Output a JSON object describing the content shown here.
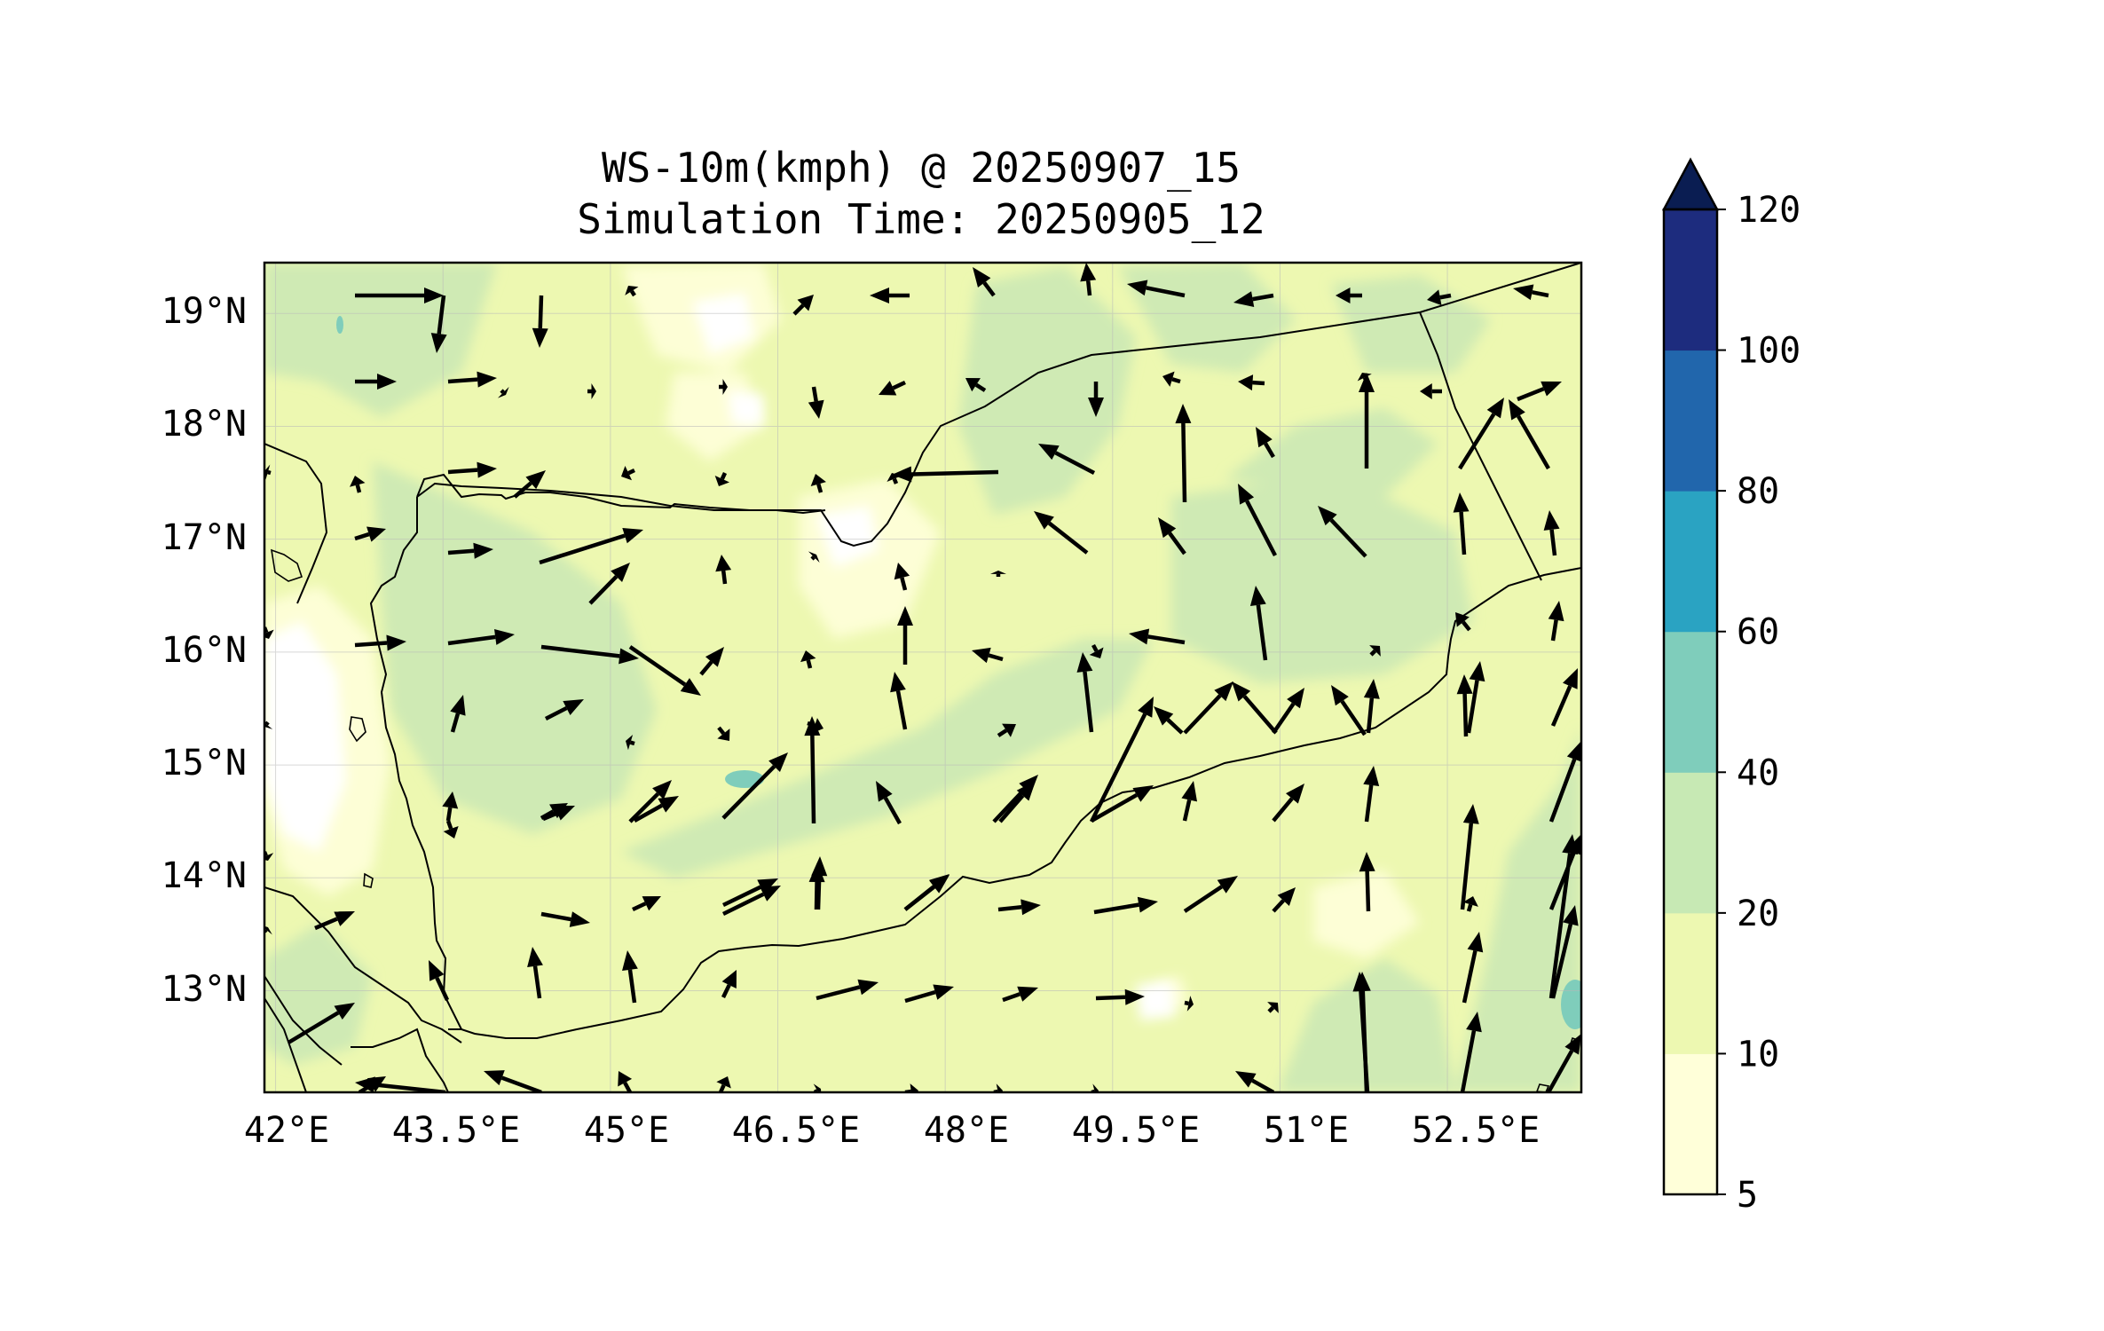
{
  "figure": {
    "title_line1": "WS-10m(kmph) @ 20250907_15",
    "title_line2": "Simulation Time: 20250905_12"
  },
  "map": {
    "lon_range": [
      41.9,
      53.7
    ],
    "lat_range": [
      12.1,
      19.45
    ],
    "lon_ticks": [
      {
        "value": 42.0,
        "label": "42°E"
      },
      {
        "value": 43.5,
        "label": "43.5°E"
      },
      {
        "value": 45.0,
        "label": "45°E"
      },
      {
        "value": 46.5,
        "label": "46.5°E"
      },
      {
        "value": 48.0,
        "label": "48°E"
      },
      {
        "value": 49.5,
        "label": "49.5°E"
      },
      {
        "value": 51.0,
        "label": "51°E"
      },
      {
        "value": 52.5,
        "label": "52.5°E"
      }
    ],
    "lat_ticks": [
      {
        "value": 19,
        "label": "19°N"
      },
      {
        "value": 18,
        "label": "18°N"
      },
      {
        "value": 17,
        "label": "17°N"
      },
      {
        "value": 16,
        "label": "16°N"
      },
      {
        "value": 15,
        "label": "15°N"
      },
      {
        "value": 14,
        "label": "14°N"
      },
      {
        "value": 13,
        "label": "13°N"
      }
    ],
    "gridlines": true,
    "wind_vector_color": "#000000",
    "border_color": "#000000"
  },
  "colorbar": {
    "extend": "max",
    "levels": [
      {
        "value": 5,
        "label": "5"
      },
      {
        "value": 10,
        "label": "10"
      },
      {
        "value": 20,
        "label": "20"
      },
      {
        "value": 40,
        "label": "40"
      },
      {
        "value": 60,
        "label": "60"
      },
      {
        "value": 80,
        "label": "80"
      },
      {
        "value": 100,
        "label": "100"
      },
      {
        "value": 120,
        "label": "120"
      }
    ],
    "colors": [
      "#ffffd9",
      "#edf8b1",
      "#c7e9b4",
      "#7fcdbb",
      "#2aa3c2",
      "#2166ac",
      "#1d2c7e",
      "#0a1d52"
    ]
  }
}
